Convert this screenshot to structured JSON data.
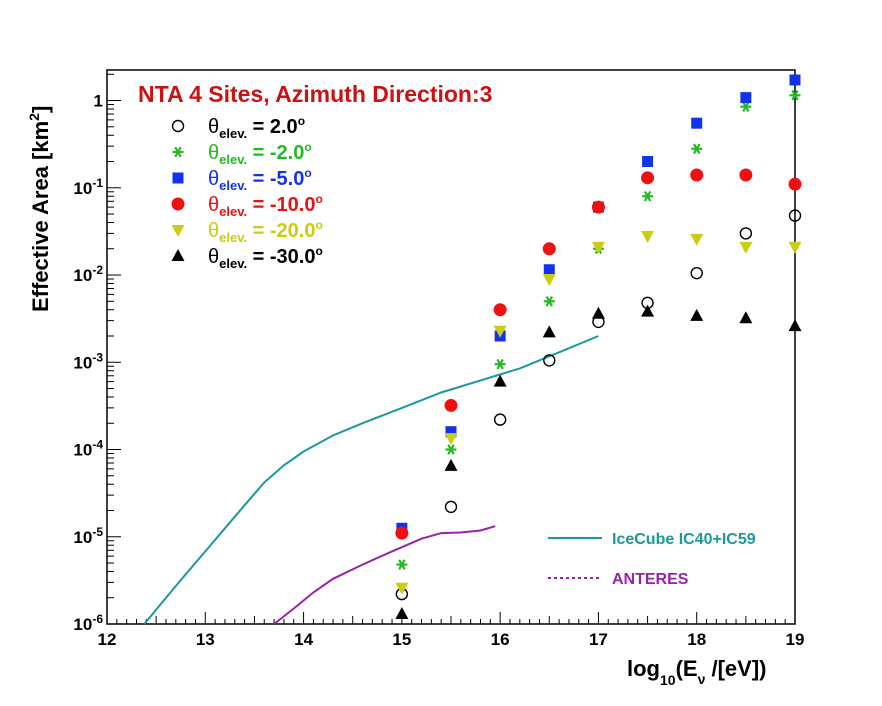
{
  "chart_data": {
    "type": "scatter",
    "title": "NTA 4 Sites, Azimuth Direction:3",
    "title_color": "#cc1111",
    "xlabel": {
      "main": "log",
      "sub": "10",
      "mid": "(E",
      "sub2": "ν",
      "end": " /[eV])"
    },
    "ylabel": {
      "main": "Effective Area [km",
      "sup": "2",
      "end": "]"
    },
    "xlim": [
      12,
      19
    ],
    "ylim_log10": [
      -6,
      0.35
    ],
    "yscale": "log",
    "x_ticks": [
      {
        "value": 12,
        "label": "12"
      },
      {
        "value": 13,
        "label": "13"
      },
      {
        "value": 14,
        "label": "14"
      },
      {
        "value": 15,
        "label": "15"
      },
      {
        "value": 16,
        "label": "16"
      },
      {
        "value": 17,
        "label": "17"
      },
      {
        "value": 18,
        "label": "18"
      },
      {
        "value": 19,
        "label": "19"
      }
    ],
    "y_ticks": [
      {
        "exp": -6,
        "base": "10",
        "sup": "-6"
      },
      {
        "exp": -5,
        "base": "10",
        "sup": "-5"
      },
      {
        "exp": -4,
        "base": "10",
        "sup": "-4"
      },
      {
        "exp": -3,
        "base": "10",
        "sup": "-3"
      },
      {
        "exp": -2,
        "base": "10",
        "sup": "-2"
      },
      {
        "exp": -1,
        "base": "10",
        "sup": "-1"
      },
      {
        "exp": 0,
        "base": "1",
        "sup": ""
      }
    ],
    "series": [
      {
        "name": "2.0",
        "legend_sym": "θ",
        "legend_sub": "elev.",
        "legend_text": " = 2.0",
        "legend_sup": "o",
        "marker": "open-circle",
        "color": "#000000",
        "label_color": "#000000",
        "x": [
          15.0,
          15.5,
          16.0,
          16.5,
          17.0,
          17.5,
          18.0,
          18.5,
          19.0
        ],
        "y": [
          2.2e-06,
          2.2e-05,
          0.00022,
          0.00105,
          0.0029,
          0.0048,
          0.0105,
          0.03,
          0.048
        ]
      },
      {
        "name": "-2.0",
        "legend_sym": "θ",
        "legend_sub": "elev.",
        "legend_text": " = -2.0",
        "legend_sup": "o",
        "marker": "star",
        "color": "#22bb22",
        "label_color": "#22bb22",
        "x": [
          15.0,
          15.5,
          16.0,
          16.5,
          17.0,
          17.5,
          18.0,
          18.5,
          19.0
        ],
        "y": [
          4.8e-06,
          0.0001,
          0.00095,
          0.005,
          0.02,
          0.08,
          0.28,
          0.85,
          1.15
        ]
      },
      {
        "name": "-5.0",
        "legend_sym": "θ",
        "legend_sub": "elev.",
        "legend_text": " = -5.0",
        "legend_sup": "o",
        "marker": "square",
        "color": "#1133ee",
        "label_color": "#1133ee",
        "x": [
          15.0,
          15.5,
          16.0,
          16.5,
          17.0,
          17.5,
          18.0,
          18.5,
          19.0
        ],
        "y": [
          1.25e-05,
          0.00016,
          0.002,
          0.0115,
          0.06,
          0.2,
          0.55,
          1.08,
          1.72
        ]
      },
      {
        "name": "-10.0",
        "legend_sym": "θ",
        "legend_sub": "elev.",
        "legend_text": " = -10.0",
        "legend_sup": "o",
        "marker": "circle",
        "color": "#ee1111",
        "label_color": "#ee1111",
        "x": [
          15.0,
          15.5,
          16.0,
          16.5,
          17.0,
          17.5,
          18.0,
          18.5,
          19.0
        ],
        "y": [
          1.1e-05,
          0.00032,
          0.004,
          0.02,
          0.06,
          0.13,
          0.14,
          0.14,
          0.11
        ]
      },
      {
        "name": "-20.0",
        "legend_sym": "θ",
        "legend_sub": "elev.",
        "legend_text": " = -20.0",
        "legend_sup": "o",
        "marker": "triangle-down",
        "color": "#cccc11",
        "label_color": "#cccc11",
        "x": [
          15.0,
          15.5,
          16.0,
          16.5,
          17.0,
          17.5,
          18.0,
          18.5,
          19.0
        ],
        "y": [
          2.6e-06,
          0.000135,
          0.0023,
          0.009,
          0.021,
          0.028,
          0.026,
          0.021,
          0.021
        ]
      },
      {
        "name": "-30.0",
        "legend_sym": "θ",
        "legend_sub": "elev.",
        "legend_text": " = -30.0",
        "legend_sup": "o",
        "marker": "triangle-up",
        "color": "#000000",
        "label_color": "#000000",
        "x": [
          15.0,
          15.5,
          16.0,
          16.5,
          17.0,
          17.5,
          18.0,
          18.5,
          19.0
        ],
        "y": [
          1.3e-06,
          6.5e-05,
          0.0006,
          0.0022,
          0.0036,
          0.0038,
          0.0034,
          0.0032,
          0.0026
        ]
      }
    ],
    "curves": [
      {
        "name": "IceCube IC40+IC59",
        "style": "solid",
        "color": "#1a9a9a",
        "x": [
          12.38,
          12.6,
          12.8,
          13.0,
          13.2,
          13.4,
          13.6,
          13.8,
          14.0,
          14.3,
          14.6,
          15.0,
          15.4,
          15.8,
          16.2,
          16.6,
          17.0
        ],
        "y": [
          1e-06,
          2e-06,
          3.7e-06,
          6.8e-06,
          1.25e-05,
          2.3e-05,
          4.2e-05,
          6.6e-05,
          9.5e-05,
          0.000145,
          0.0002,
          0.0003,
          0.00045,
          0.00062,
          0.00085,
          0.0013,
          0.002
        ]
      },
      {
        "name": "ANTERES",
        "style": "dotted",
        "color": "#9922aa",
        "x": [
          13.7,
          13.9,
          14.1,
          14.3,
          14.6,
          14.9,
          15.2,
          15.4,
          15.6,
          15.8,
          15.95
        ],
        "y": [
          1e-06,
          1.5e-06,
          2.3e-06,
          3.3e-06,
          4.8e-06,
          6.8e-06,
          9.5e-06,
          1.1e-05,
          1.12e-05,
          1.18e-05,
          1.32e-05
        ]
      }
    ]
  }
}
